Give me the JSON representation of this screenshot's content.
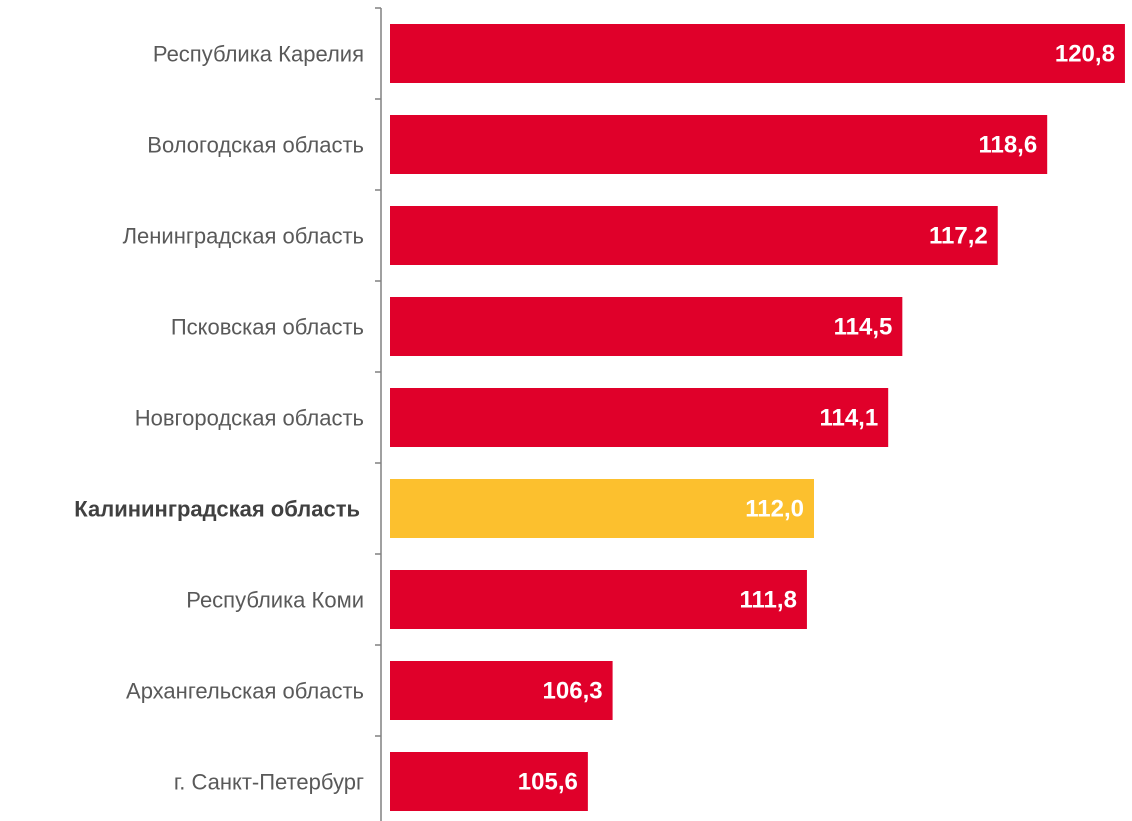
{
  "chart_data": {
    "type": "bar",
    "orientation": "horizontal",
    "categories": [
      "Республика Карелия",
      "Вологодская область",
      "Ленинградская область",
      "Псковская область",
      "Новгородская область",
      "Калининградская область",
      "Республика Коми",
      "Архангельская область",
      "г. Санкт-Петербург"
    ],
    "values": [
      120.8,
      118.6,
      117.2,
      114.5,
      114.1,
      112.0,
      111.8,
      106.3,
      105.6
    ],
    "value_labels": [
      "120,8",
      "118,6",
      "117,2",
      "114,5",
      "114,1",
      "112,0",
      "111,8",
      "106,3",
      "105,6"
    ],
    "highlight_category": "Калининградская область",
    "colors": {
      "default": "#E0002A",
      "highlight": "#FCC02E",
      "axis": "#808080",
      "label": "#595959",
      "highlight_label": "#404040",
      "value_text": "#FFFFFF"
    },
    "xlim": [
      100,
      121
    ],
    "grid": false,
    "legend": "none",
    "title": "",
    "xlabel": "",
    "ylabel": ""
  }
}
